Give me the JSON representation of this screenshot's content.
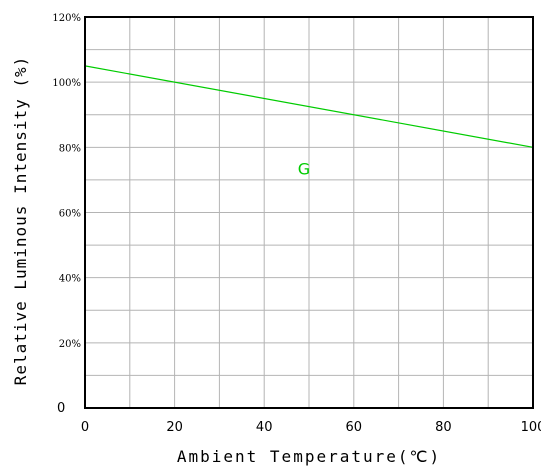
{
  "chart_data": {
    "type": "line",
    "xlabel": "Ambient Temperature(℃)",
    "ylabel": "Relative Luminous Intensity (%)",
    "xlim": [
      0,
      100
    ],
    "ylim": [
      0,
      120
    ],
    "x_ticks": [
      "0",
      "20",
      "40",
      "60",
      "80",
      "100"
    ],
    "y_ticks": [
      "0",
      "20%",
      "40%",
      "60%",
      "80%",
      "100%",
      "120%"
    ],
    "grid": true,
    "series": [
      {
        "name": "G",
        "color": "#00cc00",
        "x": [
          0,
          100
        ],
        "y": [
          105,
          80
        ]
      }
    ]
  }
}
